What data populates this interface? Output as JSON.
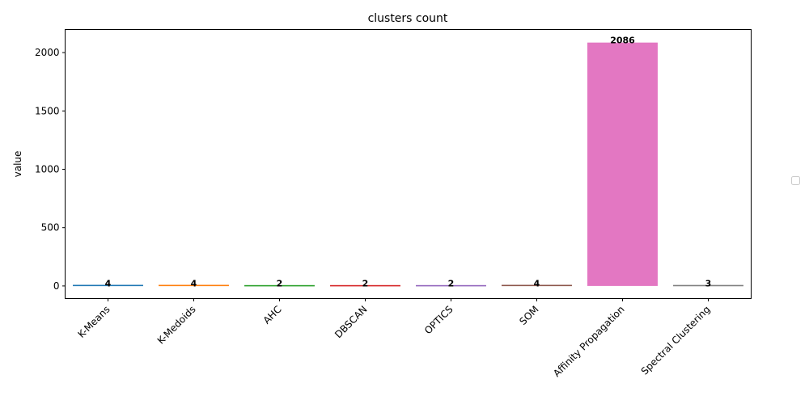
{
  "chart_data": {
    "type": "bar",
    "title": "clusters count",
    "xlabel": "",
    "ylabel": "value",
    "categories": [
      "K-Means",
      "K-Medoids",
      "AHC",
      "DBSCAN",
      "OPTICS",
      "SOM",
      "Affinity Propagation",
      "Spectral Clustering"
    ],
    "values": [
      4,
      4,
      2,
      2,
      2,
      4,
      2086,
      3
    ],
    "colors": [
      "#1f77b4",
      "#ff7f0e",
      "#2ca02c",
      "#d62728",
      "#9467bd",
      "#8c564b",
      "#e377c2",
      "#7f7f7f"
    ],
    "ylim": [
      -108,
      2198
    ],
    "yticks": [
      0,
      500,
      1000,
      1500,
      2000
    ],
    "legend": {
      "position": "right",
      "entries": []
    },
    "grid": false
  }
}
